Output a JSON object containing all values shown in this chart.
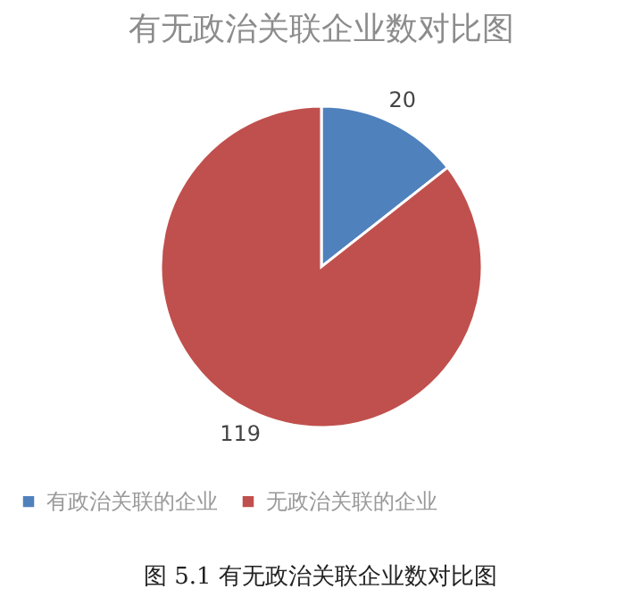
{
  "chart_data": {
    "type": "pie",
    "title": "有无政治关联企业数对比图",
    "categories": [
      "有政治关联的企业",
      "无政治关联的企业"
    ],
    "values": [
      20,
      119
    ],
    "colors": [
      "#4f81bd",
      "#c0504d"
    ],
    "data_labels": true,
    "legend": "bottom",
    "annotations": [
      "图 5.1 有无政治关联企业数对比图"
    ]
  }
}
